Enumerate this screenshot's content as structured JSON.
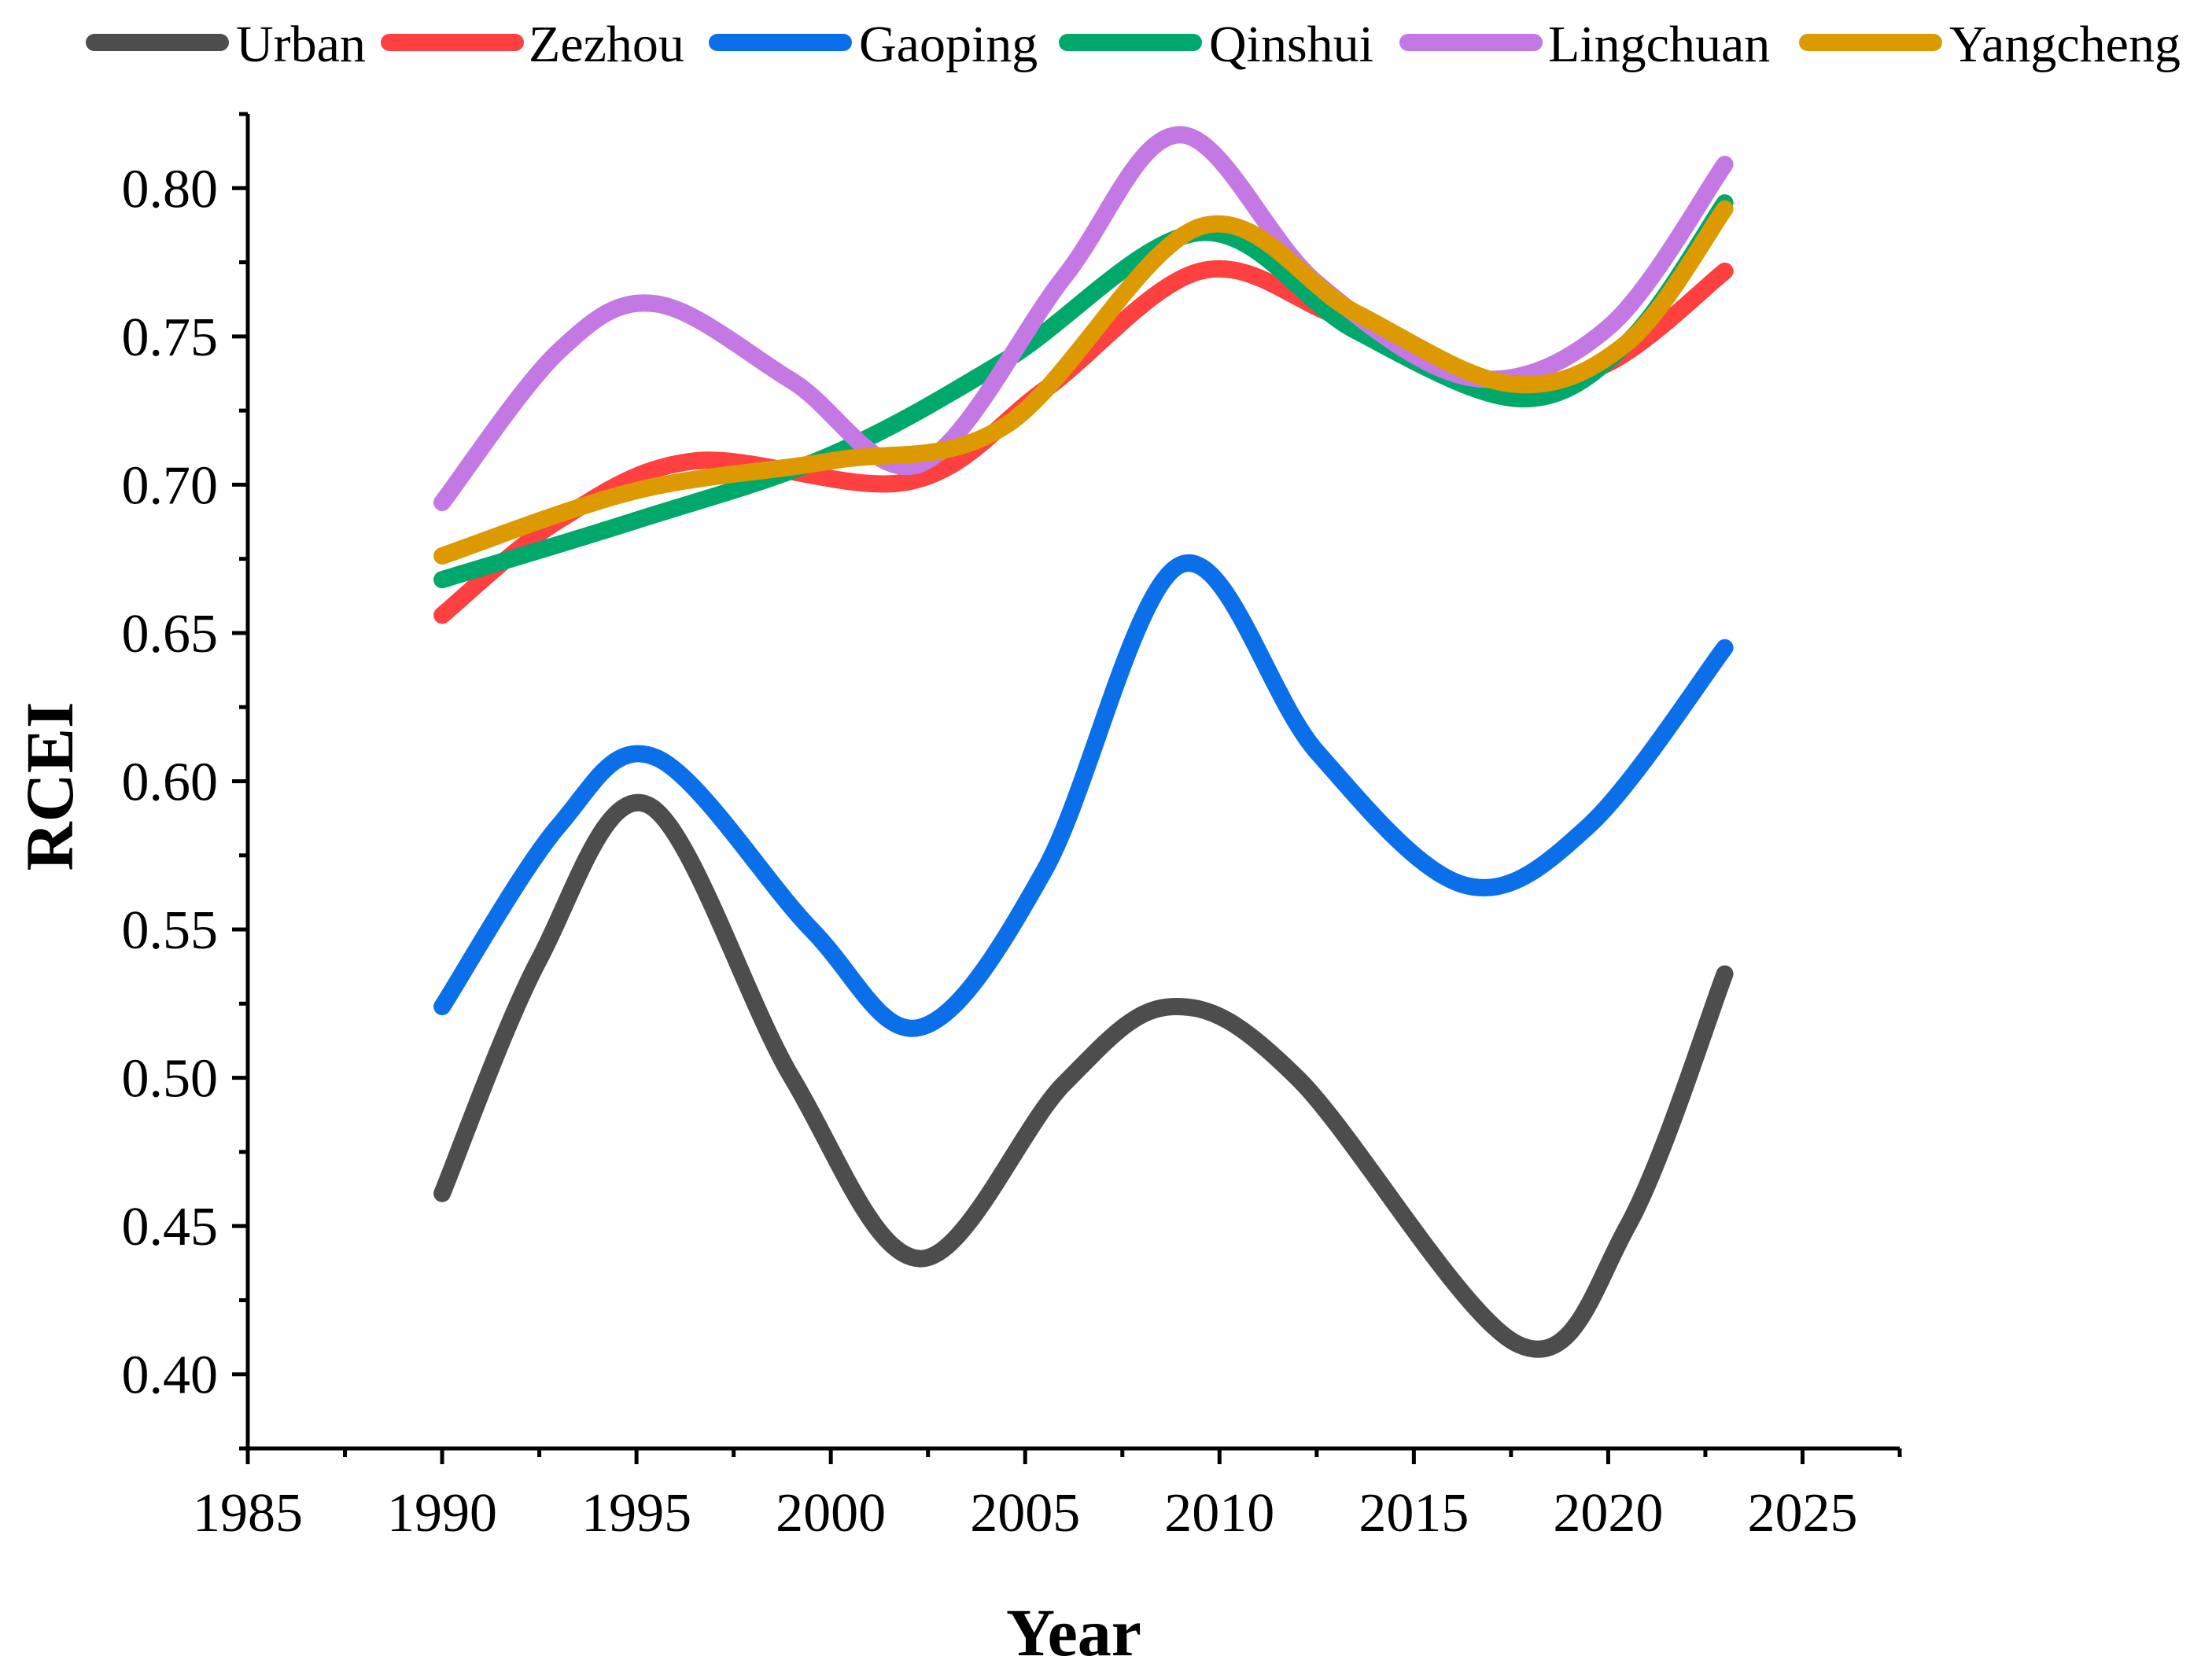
{
  "chart_data": {
    "type": "line",
    "title": "",
    "xlabel": "Year",
    "ylabel": "RCEI",
    "xlim": [
      1985,
      2027.5
    ],
    "ylim": [
      0.375,
      0.825
    ],
    "x_ticks": [
      "1985",
      "1990",
      "1995",
      "2000",
      "2005",
      "2010",
      "2015",
      "2020",
      "2025"
    ],
    "y_ticks": [
      "0.40",
      "0.45",
      "0.50",
      "0.55",
      "0.60",
      "0.65",
      "0.70",
      "0.75",
      "0.80"
    ],
    "legend_position": "top",
    "grid": false,
    "smooth": true,
    "series": [
      {
        "name": "Urban",
        "color": "#4d4d4d",
        "points": [
          [
            1990,
            0.461
          ],
          [
            1992.5,
            0.54
          ],
          [
            1995.3,
            0.592
          ],
          [
            1999,
            0.5
          ],
          [
            2002.3,
            0.439
          ],
          [
            2006,
            0.498
          ],
          [
            2008.8,
            0.524
          ],
          [
            2012,
            0.5
          ],
          [
            2017.7,
            0.41
          ],
          [
            2020.5,
            0.45
          ],
          [
            2023,
            0.535
          ]
        ]
      },
      {
        "name": "Zezhou",
        "color": "#ff4040",
        "points": [
          [
            1990,
            0.656
          ],
          [
            1993,
            0.688
          ],
          [
            1996.5,
            0.708
          ],
          [
            2002,
            0.701
          ],
          [
            2005.5,
            0.732
          ],
          [
            2009.5,
            0.772
          ],
          [
            2013,
            0.757
          ],
          [
            2017,
            0.734
          ],
          [
            2020,
            0.741
          ],
          [
            2023,
            0.772
          ]
        ]
      },
      {
        "name": "Gaoping",
        "color": "#0a6fe8",
        "points": [
          [
            1990,
            0.524
          ],
          [
            1993,
            0.585
          ],
          [
            1995.5,
            0.608
          ],
          [
            1999.5,
            0.55
          ],
          [
            2002.3,
            0.517
          ],
          [
            2005.5,
            0.57
          ],
          [
            2009,
            0.673
          ],
          [
            2012.5,
            0.61
          ],
          [
            2016.3,
            0.565
          ],
          [
            2019.5,
            0.585
          ],
          [
            2023,
            0.645
          ]
        ]
      },
      {
        "name": "Qinshui",
        "color": "#00a86b",
        "points": [
          [
            1990,
            0.668
          ],
          [
            1995,
            0.688
          ],
          [
            2000,
            0.71
          ],
          [
            2004.5,
            0.742
          ],
          [
            2009.5,
            0.785
          ],
          [
            2013.5,
            0.752
          ],
          [
            2017.7,
            0.729
          ],
          [
            2020.5,
            0.748
          ],
          [
            2023,
            0.795
          ]
        ]
      },
      {
        "name": "Lingchuan",
        "color": "#c478e3",
        "points": [
          [
            1990,
            0.694
          ],
          [
            1993,
            0.745
          ],
          [
            1995.5,
            0.761
          ],
          [
            1999,
            0.735
          ],
          [
            2002.3,
            0.707
          ],
          [
            2006,
            0.77
          ],
          [
            2009,
            0.818
          ],
          [
            2012.5,
            0.768
          ],
          [
            2016.5,
            0.736
          ],
          [
            2020,
            0.753
          ],
          [
            2023,
            0.808
          ]
        ]
      },
      {
        "name": "Yangcheng",
        "color": "#dd9a00",
        "points": [
          [
            1990,
            0.676
          ],
          [
            1995,
            0.698
          ],
          [
            2000,
            0.708
          ],
          [
            2004.5,
            0.72
          ],
          [
            2009.5,
            0.787
          ],
          [
            2013.5,
            0.758
          ],
          [
            2017.5,
            0.734
          ],
          [
            2020.5,
            0.748
          ],
          [
            2023,
            0.793
          ]
        ]
      }
    ]
  }
}
